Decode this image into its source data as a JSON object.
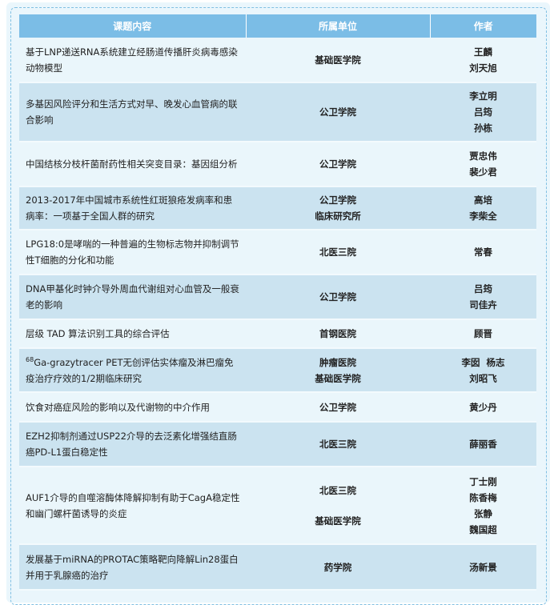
{
  "headers": {
    "topic": "课题内容",
    "unit": "所属单位",
    "authors": "作者"
  },
  "rows": [
    {
      "topic": "基于LNP递送RNA系统建立经肠道传播肝炎病毒感染动物模型",
      "units": [
        "基础医学院"
      ],
      "authors": [
        "王麟",
        "刘天旭"
      ]
    },
    {
      "topic": "多基因风险评分和生活方式对早、晚发心血管病的联合影响",
      "units": [
        "公卫学院"
      ],
      "authors": [
        "李立明",
        "吕筠",
        "孙栋"
      ]
    },
    {
      "topic": "中国结核分枝杆菌耐药性相关突变目录：基因组分析",
      "units": [
        "公卫学院"
      ],
      "authors": [
        "贾忠伟",
        "裴少君"
      ]
    },
    {
      "topic": "2013-2017年中国城市系统性红斑狼疮发病率和患病率：一项基于全国人群的研究",
      "units": [
        "公卫学院",
        "临床研究所"
      ],
      "authors": [
        "高培",
        "李柴全"
      ]
    },
    {
      "topic": "LPG18:0是哮喘的一种普遍的生物标志物并抑制调节性T细胞的分化和功能",
      "units": [
        "北医三院"
      ],
      "authors": [
        "常春"
      ]
    },
    {
      "topic": "DNA甲基化时钟介导外周血代谢组对心血管及一般衰老的影响",
      "units": [
        "公卫学院"
      ],
      "authors": [
        "吕筠",
        "司佳卉"
      ]
    },
    {
      "topic": "层级 TAD 算法识别工具的综合评估",
      "units": [
        "首钢医院"
      ],
      "authors": [
        "顾晋"
      ]
    },
    {
      "topic_sup": "68",
      "topic": "Ga-grazytracer PET无创评估实体瘤及淋巴瘤免疫治疗疗效的1/2期临床研究",
      "units": [
        "肿瘤医院",
        "基础医学院"
      ],
      "authors": [
        "李囡  杨志",
        "刘昭飞"
      ]
    },
    {
      "topic": "饮食对癌症风险的影响以及代谢物的中介作用",
      "units": [
        "公卫学院"
      ],
      "authors": [
        "黄少丹"
      ]
    },
    {
      "topic": "EZH2抑制剂通过USP22介导的去泛素化增强结直肠癌PD-L1蛋白稳定性",
      "units": [
        "北医三院"
      ],
      "authors": [
        "薛丽香"
      ]
    },
    {
      "topic": "AUF1介导的自噬溶酶体降解抑制有助于CagA稳定性和幽门螺杆菌诱导的炎症",
      "units": [
        "北医三院",
        "基础医学院"
      ],
      "authors": [
        "丁士刚",
        "陈香梅",
        "张静",
        "魏国超"
      ]
    },
    {
      "topic": "发展基于miRNA的PROTAC策略靶向降解Lin28蛋白并用于乳腺癌的治疗",
      "units": [
        "药学院"
      ],
      "authors": [
        "汤新景"
      ]
    }
  ]
}
